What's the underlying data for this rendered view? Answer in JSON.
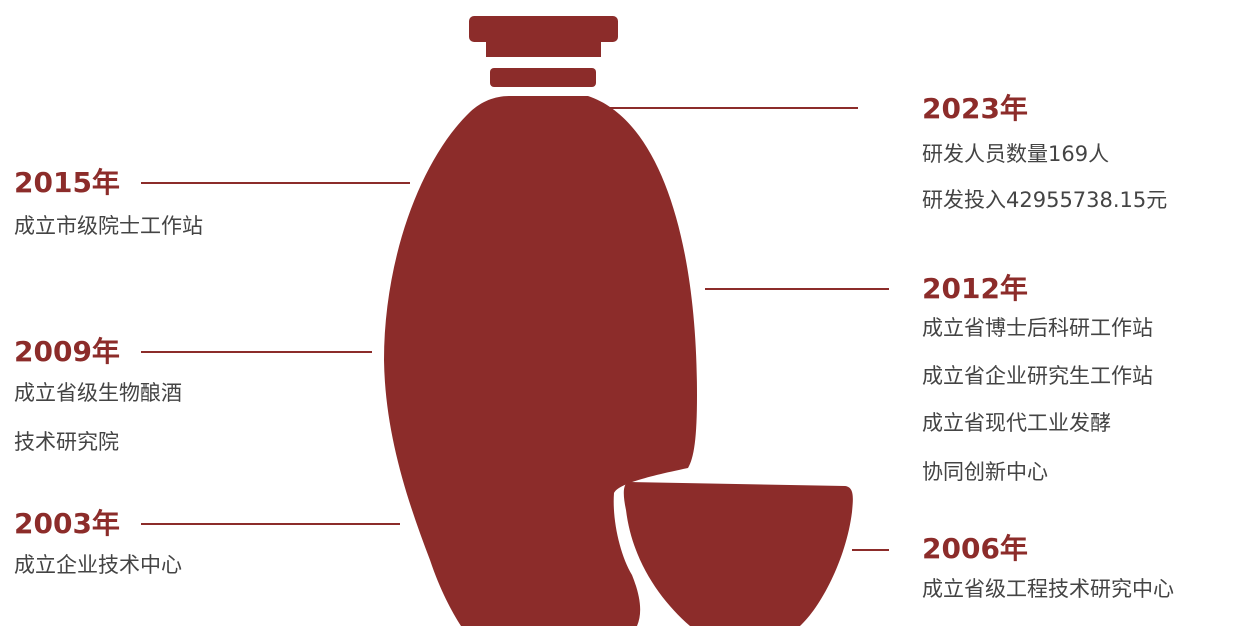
{
  "colors": {
    "accent": "#8c2c2a",
    "text": "#444444"
  },
  "left": [
    {
      "year": "2015年",
      "lines": [
        "成立市级院士工作站"
      ]
    },
    {
      "year": "2009年",
      "lines": [
        "成立省级生物酿酒",
        "技术研究院"
      ]
    },
    {
      "year": "2003年",
      "lines": [
        "成立企业技术中心"
      ]
    }
  ],
  "right": [
    {
      "year": "2023年",
      "lines": [
        "研发人员数量169人",
        "研发投入42955738.15元"
      ]
    },
    {
      "year": "2012年",
      "lines": [
        "成立省博士后科研工作站",
        "成立省企业研究生工作站",
        "成立省现代工业发酵",
        "协同创新中心"
      ]
    },
    {
      "year": "2006年",
      "lines": [
        "成立省级工程技术研究中心"
      ]
    }
  ],
  "illustration": {
    "icons": [
      "liquor-bottle-icon",
      "liquor-cup-icon"
    ]
  }
}
